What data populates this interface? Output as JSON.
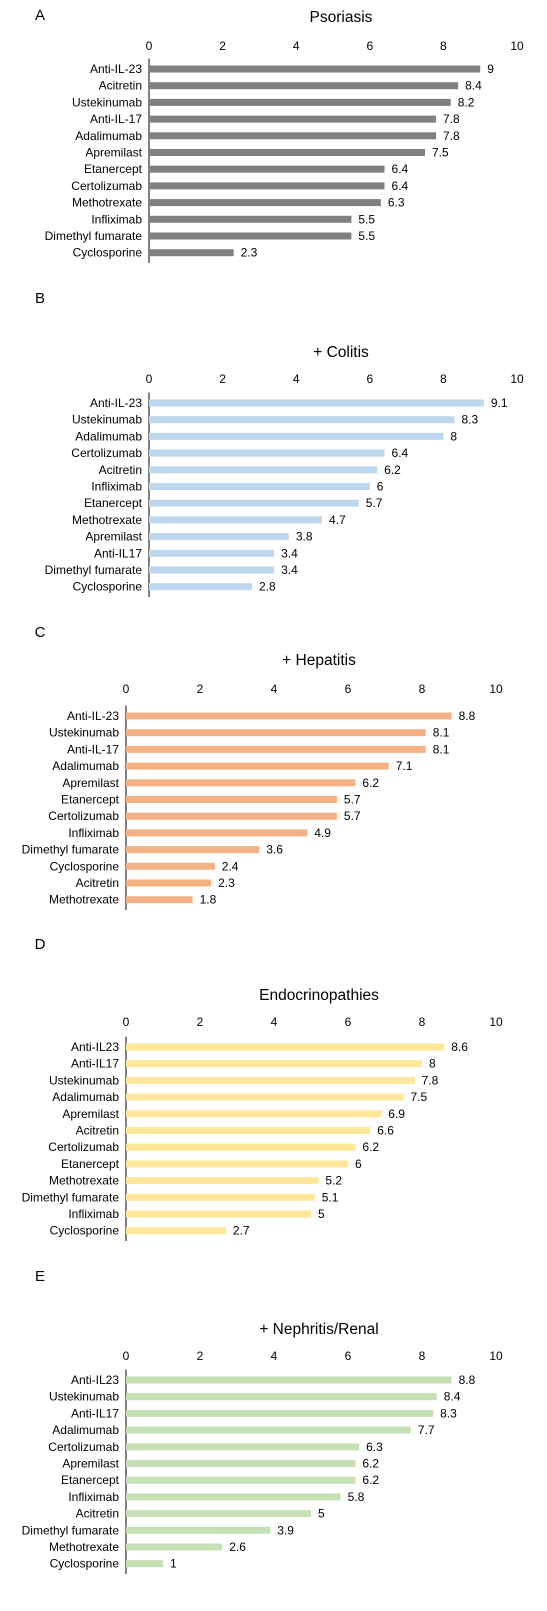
{
  "chart_data": [
    {
      "type": "bar",
      "panel": "A",
      "title": "Psoriasis",
      "bar_color": "#808080",
      "xlim": [
        0,
        10
      ],
      "ticks": [
        "0",
        "2",
        "4",
        "6",
        "8",
        "10"
      ],
      "categories": [
        "Anti-IL-23",
        "Acitretin",
        "Ustekinumab",
        "Anti-IL-17",
        "Adalimumab",
        "Apremilast",
        "Etanercept",
        "Certolizumab",
        "Methotrexate",
        "Infliximab",
        "Dimethyl fumarate",
        "Cyclosporine"
      ],
      "values": [
        9,
        8.4,
        8.2,
        7.8,
        7.8,
        7.5,
        6.4,
        6.4,
        6.3,
        5.5,
        5.5,
        2.3
      ],
      "value_labels": [
        "9",
        "8.4",
        "8.2",
        "7.8",
        "7.8",
        "7.5",
        "6.4",
        "6.4",
        "6.3",
        "5.5",
        "5.5",
        "2.3"
      ]
    },
    {
      "type": "bar",
      "panel": "B",
      "title": "+ Colitis",
      "bar_color": "#bdd7ee",
      "xlim": [
        0,
        10
      ],
      "ticks": [
        "0",
        "2",
        "4",
        "6",
        "8",
        "10"
      ],
      "categories": [
        "Anti-IL-23",
        "Ustekinumab",
        "Adalimumab",
        "Certolizumab",
        "Acitretin",
        "Infliximab",
        "Etanercept",
        "Methotrexate",
        "Apremilast",
        "Anti-IL17",
        "Dimethyl fumarate",
        "Cyclosporine"
      ],
      "values": [
        9.1,
        8.3,
        8,
        6.4,
        6.2,
        6,
        5.7,
        4.7,
        3.8,
        3.4,
        3.4,
        2.8
      ],
      "value_labels": [
        "9.1",
        "8.3",
        "8",
        "6.4",
        "6.2",
        "6",
        "5.7",
        "4.7",
        "3.8",
        "3.4",
        "3.4",
        "2.8"
      ]
    },
    {
      "type": "bar",
      "panel": "C",
      "title": "+ Hepatitis",
      "bar_color": "#f4b183",
      "xlim": [
        0,
        10
      ],
      "ticks": [
        "0",
        "2",
        "4",
        "6",
        "8",
        "10"
      ],
      "categories": [
        "Anti-IL-23",
        "Ustekinumab",
        "Anti-IL-17",
        "Adalimumab",
        "Apremilast",
        "Etanercept",
        "Certolizumab",
        "Infliximab",
        "Dimethyl fumarate",
        "Cyclosporine",
        "Acitretin",
        "Methotrexate"
      ],
      "values": [
        8.8,
        8.1,
        8.1,
        7.1,
        6.2,
        5.7,
        5.7,
        4.9,
        3.6,
        2.4,
        2.3,
        1.8
      ],
      "value_labels": [
        "8.8",
        "8.1",
        "8.1",
        "7.1",
        "6.2",
        "5.7",
        "5.7",
        "4.9",
        "3.6",
        "2.4",
        "2.3",
        "1.8"
      ]
    },
    {
      "type": "bar",
      "panel": "D",
      "title": "Endocrinopathies",
      "bar_color": "#ffe699",
      "xlim": [
        0,
        10
      ],
      "ticks": [
        "0",
        "2",
        "4",
        "6",
        "8",
        "10"
      ],
      "categories": [
        "Anti-IL23",
        "Anti-IL17",
        "Ustekinumab",
        "Adalimumab",
        "Apremilast",
        "Acitretin",
        "Certolizumab",
        "Etanercept",
        "Methotrexate",
        "Dimethyl fumarate",
        "Infliximab",
        "Cyclosporine"
      ],
      "values": [
        8.6,
        8,
        7.8,
        7.5,
        6.9,
        6.6,
        6.2,
        6,
        5.2,
        5.1,
        5,
        2.7
      ],
      "value_labels": [
        "8.6",
        "8",
        "7.8",
        "7.5",
        "6.9",
        "6.6",
        "6.2",
        "6",
        "5.2",
        "5.1",
        "5",
        "2.7"
      ]
    },
    {
      "type": "bar",
      "panel": "E",
      "title": "+ Nephritis/Renal",
      "bar_color": "#c5e0b4",
      "xlim": [
        0,
        10
      ],
      "ticks": [
        "0",
        "2",
        "4",
        "6",
        "8",
        "10"
      ],
      "categories": [
        "Anti-IL23",
        "Ustekinumab",
        "Anti-IL17",
        "Adalimumab",
        "Certolizumab",
        "Apremilast",
        "Etanercept",
        "Infliximab",
        "Acitretin",
        "Dimethyl fumarate",
        "Methotrexate",
        "Cyclosporine"
      ],
      "values": [
        8.8,
        8.4,
        8.3,
        7.7,
        6.3,
        6.2,
        6.2,
        5.8,
        5,
        3.9,
        2.6,
        1
      ],
      "value_labels": [
        "8.8",
        "8.4",
        "8.3",
        "7.7",
        "6.3",
        "6.2",
        "6.2",
        "5.8",
        "5",
        "3.9",
        "2.6",
        "1"
      ]
    }
  ]
}
